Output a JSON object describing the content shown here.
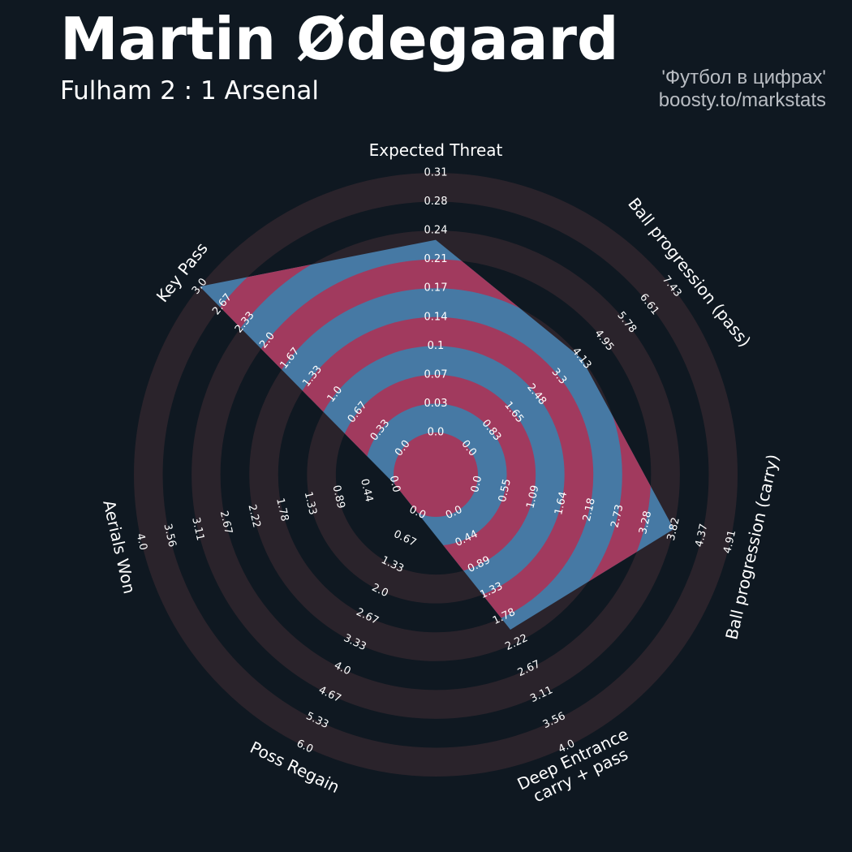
{
  "header": {
    "title": "Martin Ødegaard",
    "subtitle": "Fulham 2 : 1 Arsenal",
    "credit_line1": "'Футбол в цифрах'",
    "credit_line2": "boosty.to/markstats"
  },
  "colors": {
    "background": "#0f1821",
    "ring_band": "#2a232b",
    "polygon_blue": "#4679a4",
    "polygon_red": "#a13a5e",
    "text": "#ffffff"
  },
  "chart_data": {
    "type": "radar",
    "params": [
      {
        "label": "Expected Threat",
        "ticks": [
          "0.0",
          "0.03",
          "0.07",
          "0.1",
          "0.14",
          "0.17",
          "0.21",
          "0.24",
          "0.28",
          "0.31"
        ],
        "value": 0.23,
        "range": [
          0.0,
          0.31
        ]
      },
      {
        "label": "Ball progression (pass)",
        "ticks": [
          "0.0",
          "0.83",
          "1.65",
          "2.48",
          "3.3",
          "4.13",
          "4.95",
          "5.78",
          "6.61",
          "7.43"
        ],
        "value": 4.13,
        "range": [
          0.0,
          7.43
        ]
      },
      {
        "label": "Ball progression (carry)",
        "ticks": [
          "0.0",
          "0.55",
          "1.09",
          "1.64",
          "2.18",
          "2.73",
          "3.28",
          "3.82",
          "4.37",
          "4.91"
        ],
        "value": 3.82,
        "range": [
          0.0,
          4.91
        ]
      },
      {
        "label": "Deep Entrance\ncarry + pass",
        "ticks": [
          "0.0",
          "0.44",
          "0.89",
          "1.33",
          "1.78",
          "2.22",
          "2.67",
          "3.11",
          "3.56",
          "4.0"
        ],
        "value": 2.0,
        "range": [
          0.0,
          4.0
        ]
      },
      {
        "label": "Poss Regain",
        "ticks": [
          "0.0",
          "0.67",
          "1.33",
          "2.0",
          "2.67",
          "3.33",
          "4.0",
          "4.67",
          "5.33",
          "6.0"
        ],
        "value": 0.0,
        "range": [
          0.0,
          6.0
        ]
      },
      {
        "label": "Aerials Won",
        "ticks": [
          "0.0",
          "0.44",
          "0.89",
          "1.33",
          "1.78",
          "2.22",
          "2.67",
          "3.11",
          "3.56",
          "4.0"
        ],
        "value": 0.0,
        "range": [
          0.0,
          4.0
        ]
      },
      {
        "label": "Key Pass",
        "ticks": [
          "0.0",
          "0.33",
          "0.67",
          "1.0",
          "1.33",
          "1.67",
          "2.0",
          "2.33",
          "2.67",
          "3.0"
        ],
        "value": 3.0,
        "range": [
          0.0,
          3.0
        ]
      }
    ]
  }
}
